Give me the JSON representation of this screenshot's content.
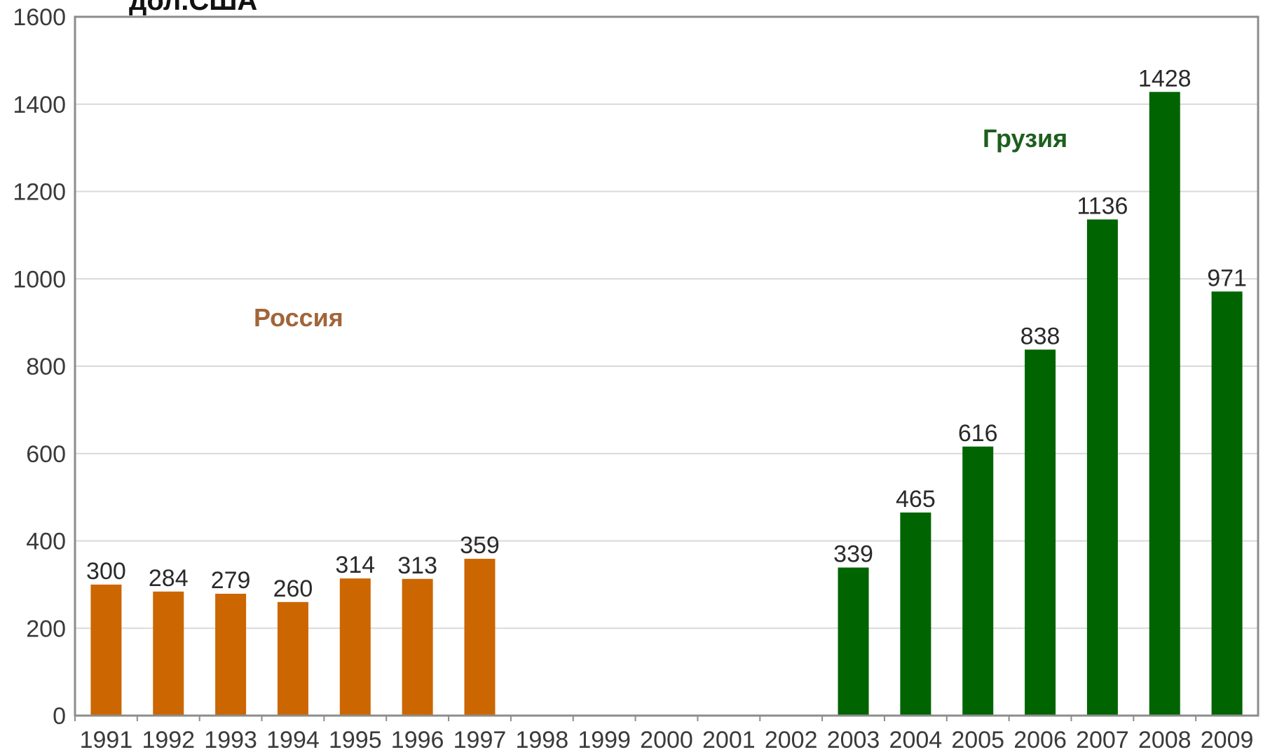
{
  "chart_data": {
    "type": "bar",
    "title": "",
    "unit_label": "дол.США",
    "xlabel": "",
    "ylabel": "",
    "ylim": [
      0,
      1600
    ],
    "yticks": [
      0,
      200,
      400,
      600,
      800,
      1000,
      1200,
      1400,
      1600
    ],
    "grid": true,
    "categories": [
      "1991",
      "1992",
      "1993",
      "1994",
      "1995",
      "1996",
      "1997",
      "1998",
      "1999",
      "2000",
      "2001",
      "2002",
      "2003",
      "2004",
      "2005",
      "2006",
      "2007",
      "2008",
      "2009"
    ],
    "series": [
      {
        "name": "Россия",
        "color": "#cc6600",
        "values": [
          300,
          284,
          279,
          260,
          314,
          313,
          359,
          null,
          null,
          null,
          null,
          null,
          null,
          null,
          null,
          null,
          null,
          null,
          null
        ]
      },
      {
        "name": "Грузия",
        "color": "#006400",
        "values": [
          null,
          null,
          null,
          null,
          null,
          null,
          null,
          null,
          null,
          null,
          null,
          null,
          339,
          465,
          616,
          838,
          1136,
          1428,
          971
        ]
      }
    ],
    "series_label_colors": {
      "Россия": "#a0653a",
      "Грузия": "#1e5e1e"
    }
  }
}
